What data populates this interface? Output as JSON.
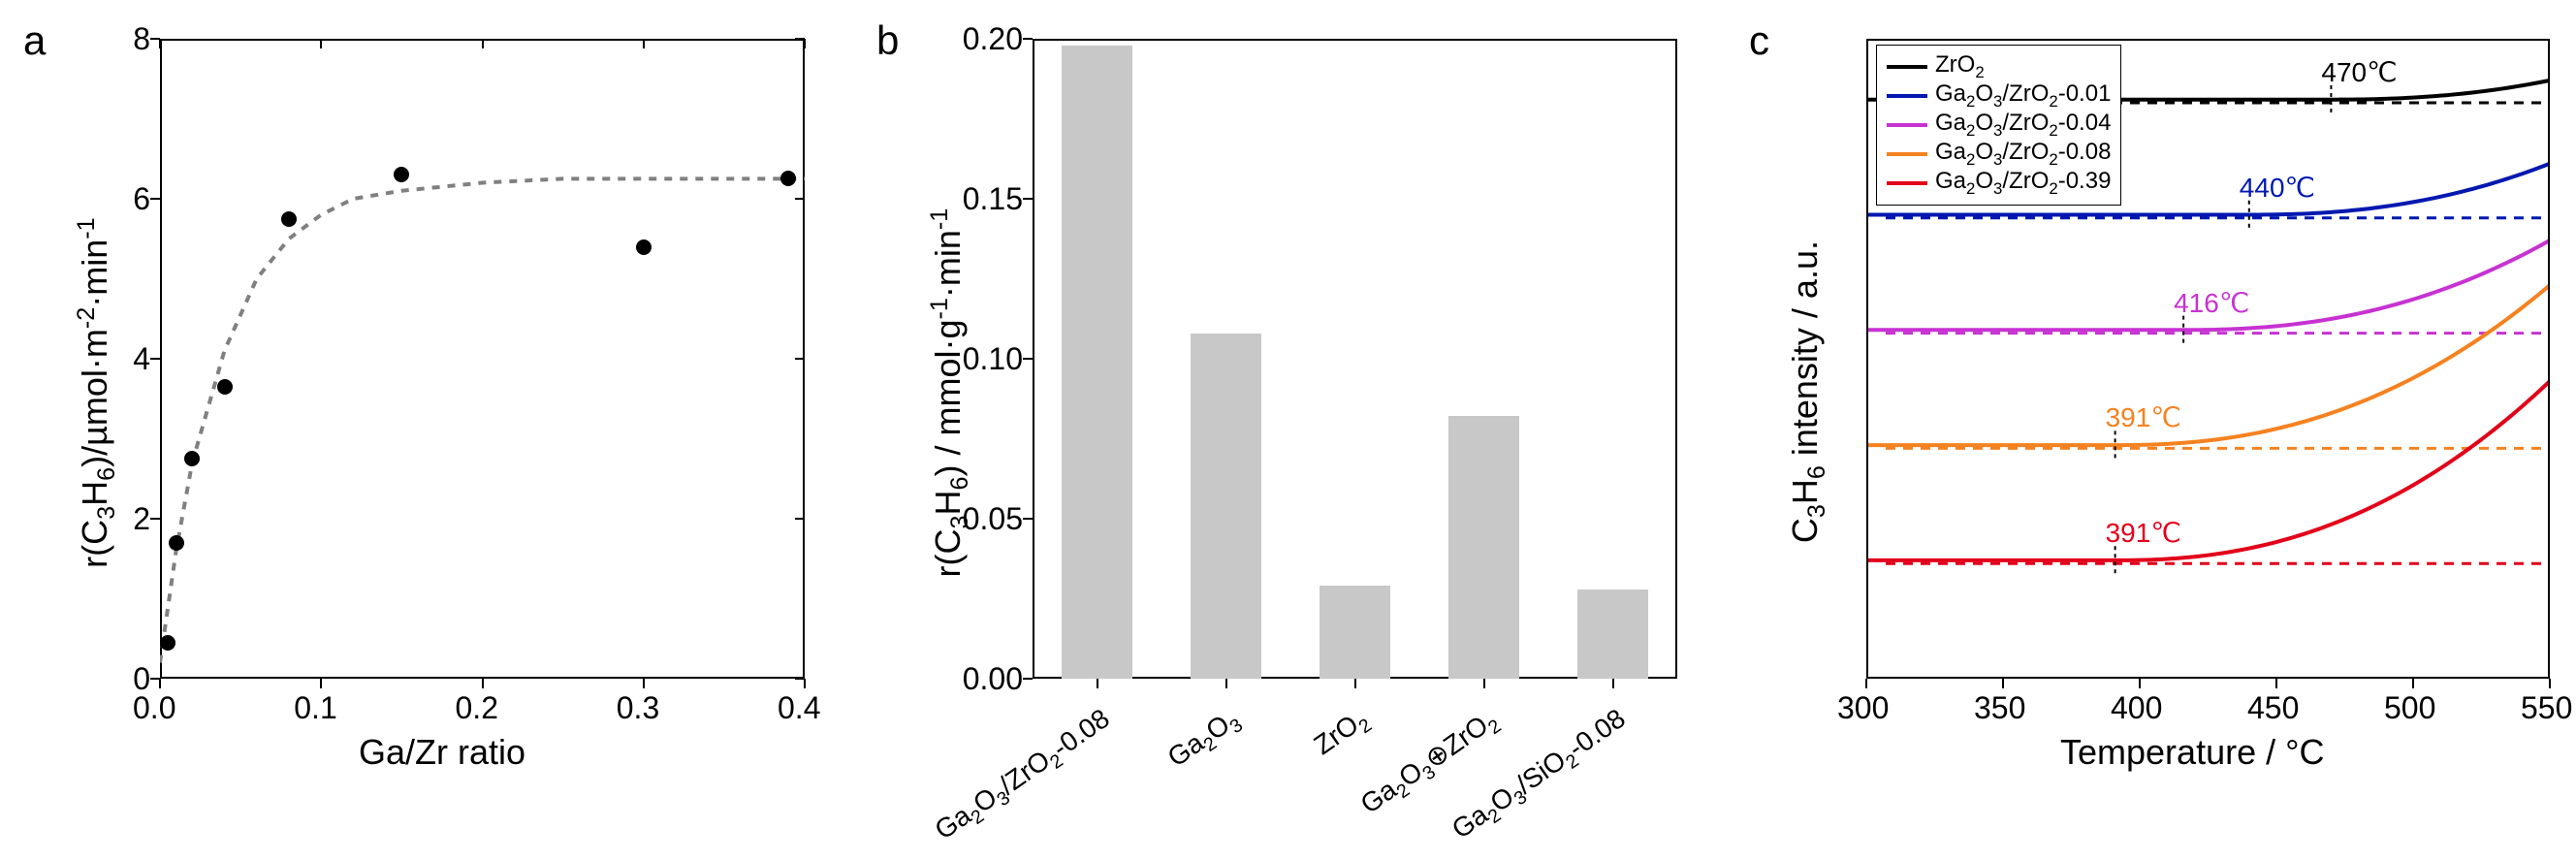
{
  "figure": {
    "panel_a": {
      "letter": "a",
      "type": "scatter",
      "xlabel": "Ga/Zr ratio",
      "ylabel_html": "r(C<sub>3</sub>H<sub>6</sub>)/µmol·m<sup>-2</sup>·min<sup>-1</sup>",
      "xlim": [
        0.0,
        0.4
      ],
      "ylim": [
        0,
        8
      ],
      "xticks": [
        0.0,
        0.1,
        0.2,
        0.3,
        0.4
      ],
      "yticks": [
        0,
        2,
        4,
        6,
        8
      ],
      "tick_fontsize": 32,
      "label_fontsize": 36,
      "marker_color": "#000000",
      "marker_size": 16,
      "points_x": [
        0.005,
        0.01,
        0.02,
        0.04,
        0.08,
        0.15,
        0.3,
        0.39
      ],
      "points_y": [
        0.45,
        1.7,
        2.75,
        3.65,
        5.75,
        6.3,
        5.4,
        6.25
      ],
      "fit_curve": {
        "color": "#808080",
        "dash": "8 8",
        "width": 4,
        "x": [
          0,
          0.01,
          0.02,
          0.04,
          0.06,
          0.08,
          0.1,
          0.12,
          0.15,
          0.2,
          0.25,
          0.3,
          0.35,
          0.4
        ],
        "y": [
          0.2,
          1.6,
          2.7,
          4.1,
          5.0,
          5.5,
          5.8,
          6.0,
          6.1,
          6.2,
          6.25,
          6.25,
          6.25,
          6.25
        ]
      },
      "background_color": "#ffffff"
    },
    "panel_b": {
      "letter": "b",
      "type": "bar",
      "ylabel_html": "r(C<sub>3</sub>H<sub>6</sub>) / mmol·g<sup>-1</sup>·min<sup>-1</sup>",
      "ylim": [
        0.0,
        0.2
      ],
      "yticks": [
        0.0,
        0.05,
        0.1,
        0.15,
        0.2
      ],
      "bar_color": "#c8c8c8",
      "bar_width": 0.55,
      "categories_html": [
        "Ga<sub>2</sub>O<sub>3</sub>/ZrO<sub>2</sub>-0.08",
        "Ga<sub>2</sub>O<sub>3</sub>",
        "ZrO<sub>2</sub>",
        "Ga<sub>2</sub>O<sub>3</sub>⊕ZrO<sub>2</sub>",
        "Ga<sub>2</sub>O<sub>3</sub>/SiO<sub>2</sub>-0.08"
      ],
      "values": [
        0.198,
        0.108,
        0.029,
        0.082,
        0.028
      ],
      "tick_fontsize": 32,
      "label_fontsize": 36,
      "background_color": "#ffffff"
    },
    "panel_c": {
      "letter": "c",
      "type": "line",
      "xlabel": "Temperature / °C",
      "ylabel_html": "C<sub>3</sub>H<sub>6</sub> intensity / a.u.",
      "xlim": [
        300,
        550
      ],
      "xticks": [
        300,
        350,
        400,
        450,
        500,
        550
      ],
      "tick_fontsize": 32,
      "label_fontsize": 36,
      "line_width": 4,
      "baseline_dash": "10 8",
      "series": [
        {
          "legend_html": "ZrO<sub>2</sub>",
          "color": "#000000",
          "anno_text": "470℃",
          "anno_x": 470,
          "baseline_y": 0.9,
          "onset_x": 470,
          "rise": 0.03
        },
        {
          "legend_html": "Ga<sub>2</sub>O<sub>3</sub>/ZrO<sub>2</sub>-0.01",
          "color": "#0018b0",
          "anno_text": "440℃",
          "anno_x": 440,
          "baseline_y": 0.72,
          "onset_x": 440,
          "rise": 0.08
        },
        {
          "legend_html": "Ga<sub>2</sub>O<sub>3</sub>/ZrO<sub>2</sub>-0.04",
          "color": "#c732d2",
          "anno_text": "416℃",
          "anno_x": 416,
          "baseline_y": 0.54,
          "onset_x": 416,
          "rise": 0.14
        },
        {
          "legend_html": "Ga<sub>2</sub>O<sub>3</sub>/ZrO<sub>2</sub>-0.08",
          "color": "#f58220",
          "anno_text": "391℃",
          "anno_x": 391,
          "baseline_y": 0.36,
          "onset_x": 391,
          "rise": 0.25
        },
        {
          "legend_html": "Ga<sub>2</sub>O<sub>3</sub>/ZrO<sub>2</sub>-0.39",
          "color": "#e2001a",
          "anno_text": "391℃",
          "anno_x": 391,
          "baseline_y": 0.18,
          "onset_x": 391,
          "rise": 0.28
        }
      ],
      "legend_position": "top-left",
      "background_color": "#ffffff"
    }
  }
}
